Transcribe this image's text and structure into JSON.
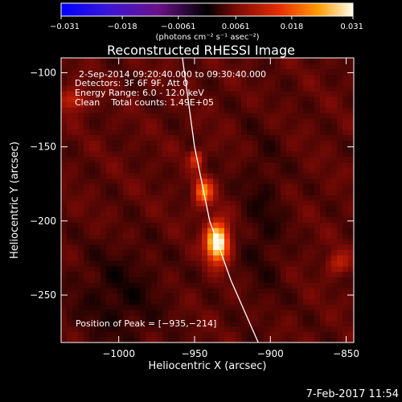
{
  "chart_data": {
    "type": "heatmap",
    "title": "Reconstructed RHESSI Image",
    "xlabel": "Heliocentric X (arcsec)",
    "ylabel": "Heliocentric Y (arcsec)",
    "xlim": [
      -1038,
      -845
    ],
    "ylim": [
      -282,
      -90
    ],
    "x_ticks": [
      -1000,
      -950,
      -900,
      -850
    ],
    "x_tick_labels": [
      "−1000",
      "−950",
      "−900",
      "−850"
    ],
    "y_ticks": [
      -100,
      -150,
      -200,
      -250
    ],
    "y_tick_labels": [
      "−100",
      "−150",
      "−200",
      "−250"
    ],
    "colorbar": {
      "min": -0.031,
      "max": 0.031,
      "ticks": [
        -0.031,
        -0.018,
        -0.0061,
        0.0061,
        0.018,
        0.031
      ],
      "tick_labels": [
        "−0.031",
        "−0.018",
        "−0.0061",
        "0.0061",
        "0.018",
        "0.031"
      ],
      "units_label": "(photons cm⁻² s⁻¹ asec⁻²)",
      "colormap": "rhessi-bipolar"
    },
    "info_lines": [
      "2-Sep-2014 09:20:40.000 to 09:30:40.000",
      "Detectors: 3F 6F 9F, Att 0",
      "Energy Range: 6.0 - 12.0 keV",
      "Clean    Total counts: 1.49E+05"
    ],
    "peak": {
      "x": -935,
      "y": -214,
      "label": "Position of Peak = [−935,−214]"
    },
    "sources": [
      {
        "x": -935,
        "y": -214,
        "peak": 0.031,
        "sigma_x": 5,
        "sigma_y": 9
      },
      {
        "x": -944,
        "y": -180,
        "peak": 0.018,
        "sigma_x": 4,
        "sigma_y": 6
      },
      {
        "x": -949,
        "y": -158,
        "peak": 0.011,
        "sigma_x": 3,
        "sigma_y": 4
      },
      {
        "x": -1030,
        "y": -118,
        "peak": 0.009,
        "sigma_x": 6,
        "sigma_y": 5
      },
      {
        "x": -855,
        "y": -228,
        "peak": 0.007,
        "sigma_x": 5,
        "sigma_y": 5
      }
    ],
    "limb_arc": [
      [
        -958,
        -90
      ],
      [
        -950,
        -150
      ],
      [
        -940,
        -200
      ],
      [
        -926,
        -240
      ],
      [
        -908,
        -282
      ]
    ],
    "limb_color": "#ffffff"
  },
  "footer": {
    "date_label": "7-Feb-2017 11:54"
  }
}
